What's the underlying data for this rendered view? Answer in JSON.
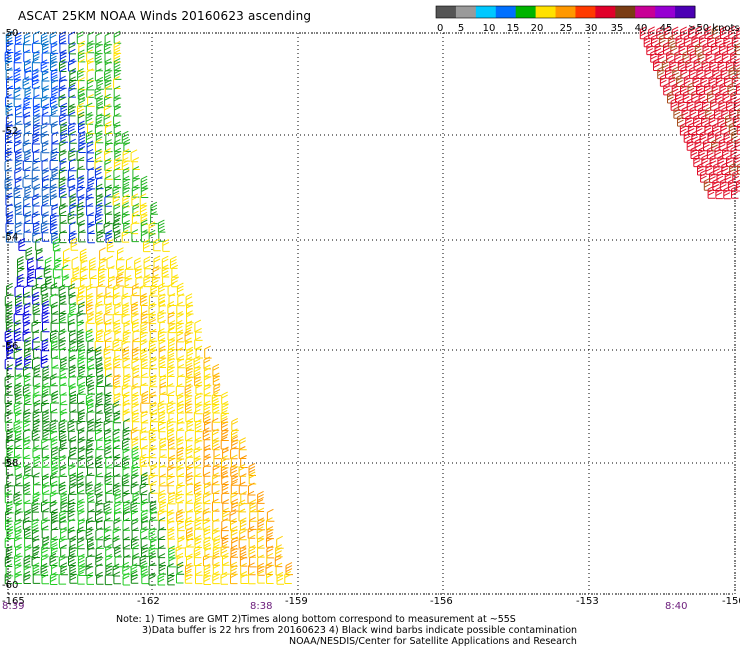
{
  "title": "ASCAT 25KM NOAA Winds 20160623 ascending",
  "colorbar": {
    "labels": [
      "0",
      "5",
      "10",
      "15",
      "20",
      "25",
      "30",
      "35",
      "40",
      "45",
      ">50 knots"
    ],
    "colors": [
      "#555555",
      "#9a9a9a",
      "#00c8ff",
      "#0070ff",
      "#00b400",
      "#ffe100",
      "#ff9800",
      "#ff3a00",
      "#e0002a",
      "#7a3c14",
      "#c80096",
      "#9600d2",
      "#4b00b4"
    ]
  },
  "lat_labels": [
    "-50",
    "-52",
    "-54",
    "-56",
    "-58",
    "-60"
  ],
  "lon_labels": [
    "-165",
    "-162",
    "-159",
    "-156",
    "-153",
    "-150"
  ],
  "time_labels": [
    "8:39",
    "8:38",
    "8:40"
  ],
  "notes": {
    "line1": "Note: 1) Times are GMT 2)Times along bottom correspond to measurement at ~55S",
    "line2": "3)Data buffer is 22 hrs from 20160623 4) Black wind barbs indicate possible contamination",
    "line3": "NOAA/NESDIS/Center for Satellite Applications and Research"
  }
}
